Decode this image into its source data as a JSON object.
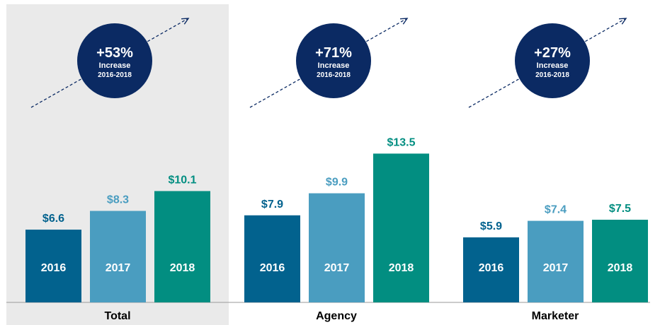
{
  "chart_data": {
    "type": "bar",
    "categories": [
      "2016",
      "2017",
      "2018"
    ],
    "groups": [
      {
        "name": "Total",
        "values": [
          6.6,
          8.3,
          10.1
        ],
        "value_labels": [
          "$6.6",
          "$8.3",
          "$10.1"
        ],
        "growth": "+53%",
        "growth_label": "Increase",
        "growth_period": "2016-2018",
        "highlighted": true
      },
      {
        "name": "Agency",
        "values": [
          7.9,
          9.9,
          13.5
        ],
        "value_labels": [
          "$7.9",
          "$9.9",
          "$13.5"
        ],
        "growth": "+71%",
        "growth_label": "Increase",
        "growth_period": "2016-2018",
        "highlighted": false
      },
      {
        "name": "Marketer",
        "values": [
          5.9,
          7.4,
          7.5
        ],
        "value_labels": [
          "$5.9",
          "$7.4",
          "$7.5"
        ],
        "growth": "+27%",
        "growth_label": "Increase",
        "growth_period": "2016-2018",
        "highlighted": false
      }
    ],
    "ylim": [
      0,
      16
    ],
    "grid": false,
    "legend": "none"
  },
  "colors": {
    "bar_2016": "#02628e",
    "bar_2017": "#4a9dc0",
    "bar_2018": "#028e81",
    "label_2016": "#02628e",
    "label_2017": "#4a9dc0",
    "label_2018": "#028e81",
    "circle": "#0b2a63",
    "arrow": "#0b2a63",
    "highlight_bg": "#eaeaea",
    "axis": "#9a9a9a",
    "group_label": "#000000",
    "bar_text": "#ffffff"
  }
}
